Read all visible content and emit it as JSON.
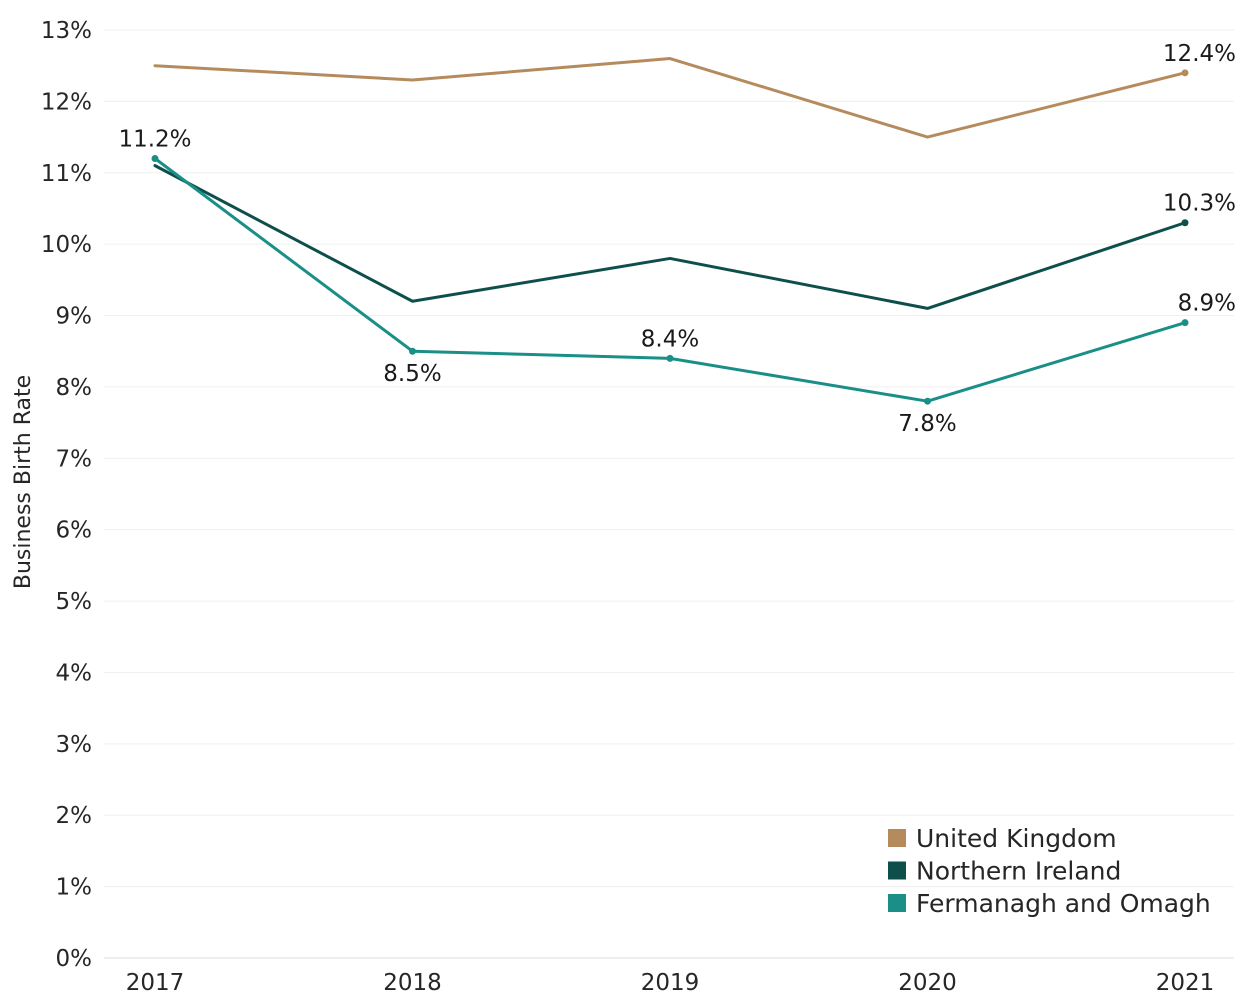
{
  "chart_data": {
    "type": "line",
    "title": "",
    "xlabel": "",
    "ylabel": "Business Birth Rate",
    "x": [
      "2017",
      "2018",
      "2019",
      "2020",
      "2021"
    ],
    "ylim": [
      0,
      13
    ],
    "yticks": [
      {
        "value": 0,
        "label": "0%"
      },
      {
        "value": 1,
        "label": "1%"
      },
      {
        "value": 2,
        "label": "2%"
      },
      {
        "value": 3,
        "label": "3%"
      },
      {
        "value": 4,
        "label": "4%"
      },
      {
        "value": 5,
        "label": "5%"
      },
      {
        "value": 6,
        "label": "6%"
      },
      {
        "value": 7,
        "label": "7%"
      },
      {
        "value": 8,
        "label": "8%"
      },
      {
        "value": 9,
        "label": "9%"
      },
      {
        "value": 10,
        "label": "10%"
      },
      {
        "value": 11,
        "label": "11%"
      },
      {
        "value": 12,
        "label": "12%"
      },
      {
        "value": 13,
        "label": "13%"
      }
    ],
    "grid": true,
    "legend_position": "bottom-right",
    "series": [
      {
        "name": "United Kingdom",
        "color": "#b58b5e",
        "values": [
          12.5,
          12.3,
          12.6,
          11.5,
          12.4
        ],
        "labels": [
          null,
          null,
          null,
          null,
          {
            "text": "12.4%",
            "placement": "above"
          }
        ]
      },
      {
        "name": "Northern Ireland",
        "color": "#0e4f4c",
        "values": [
          11.1,
          9.2,
          9.8,
          9.1,
          10.3
        ],
        "labels": [
          null,
          null,
          null,
          null,
          {
            "text": "10.3%",
            "placement": "above"
          }
        ]
      },
      {
        "name": "Fermanagh and Omagh",
        "color": "#198f87",
        "values": [
          11.2,
          8.5,
          8.4,
          7.8,
          8.9
        ],
        "labels": [
          {
            "text": "11.2%",
            "placement": "above"
          },
          {
            "text": "8.5%",
            "placement": "below"
          },
          {
            "text": "8.4%",
            "placement": "above"
          },
          {
            "text": "7.8%",
            "placement": "below"
          },
          {
            "text": "8.9%",
            "placement": "above"
          }
        ]
      }
    ]
  }
}
